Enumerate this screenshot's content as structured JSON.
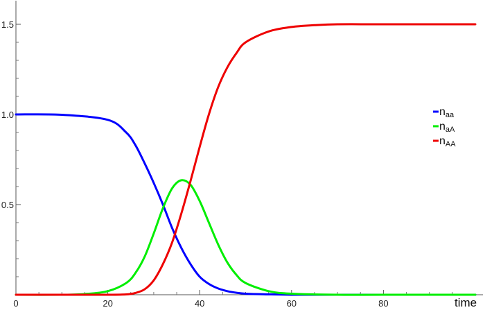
{
  "chart_data": {
    "type": "line",
    "title": "",
    "xlabel": "time",
    "ylabel": "",
    "xlim": [
      0,
      100
    ],
    "ylim": [
      0,
      1.6
    ],
    "x_ticks": [
      0,
      20,
      40,
      60,
      80
    ],
    "y_ticks": [
      0.5,
      1.0,
      1.5
    ],
    "x_tick_labels": [
      "0",
      "20",
      "40",
      "60",
      "80"
    ],
    "y_tick_labels": [
      "0.5",
      "1.0",
      "1.5"
    ],
    "grid": false,
    "legend_position": "right",
    "series": [
      {
        "name": "naa",
        "legend_main": "n",
        "legend_sub": "aa",
        "color": "#0000ff",
        "x": [
          0,
          10,
          20,
          24,
          26,
          28,
          30,
          32,
          34,
          36,
          38,
          40,
          42,
          44,
          46,
          48,
          50,
          55,
          60,
          70,
          80,
          100
        ],
        "y": [
          1.0,
          0.998,
          0.97,
          0.9,
          0.83,
          0.73,
          0.62,
          0.5,
          0.37,
          0.26,
          0.17,
          0.1,
          0.06,
          0.035,
          0.02,
          0.011,
          0.006,
          0.002,
          0.0,
          0.0,
          0.0,
          0.0
        ]
      },
      {
        "name": "naA",
        "legend_main": "n",
        "legend_sub": "aA",
        "color": "#00ee00",
        "x": [
          0,
          10,
          15,
          20,
          24,
          26,
          28,
          30,
          32,
          34,
          36,
          38,
          40,
          42,
          44,
          46,
          48,
          50,
          55,
          60,
          70,
          80,
          100
        ],
        "y": [
          0.0,
          0.0,
          0.004,
          0.02,
          0.065,
          0.12,
          0.21,
          0.34,
          0.48,
          0.59,
          0.635,
          0.61,
          0.52,
          0.4,
          0.28,
          0.18,
          0.11,
          0.065,
          0.02,
          0.006,
          0.0,
          0.0,
          0.0
        ]
      },
      {
        "name": "nAA",
        "legend_main": "n",
        "legend_sub": "AA",
        "color": "#ee0000",
        "x": [
          0,
          10,
          20,
          24,
          26,
          28,
          30,
          32,
          34,
          36,
          38,
          40,
          42,
          44,
          46,
          48,
          50,
          55,
          60,
          65,
          70,
          80,
          100
        ],
        "y": [
          0.0,
          0.0,
          0.0,
          0.002,
          0.01,
          0.03,
          0.08,
          0.17,
          0.29,
          0.45,
          0.63,
          0.82,
          1.0,
          1.15,
          1.26,
          1.34,
          1.4,
          1.46,
          1.485,
          1.495,
          1.5,
          1.5,
          1.5
        ]
      }
    ]
  }
}
